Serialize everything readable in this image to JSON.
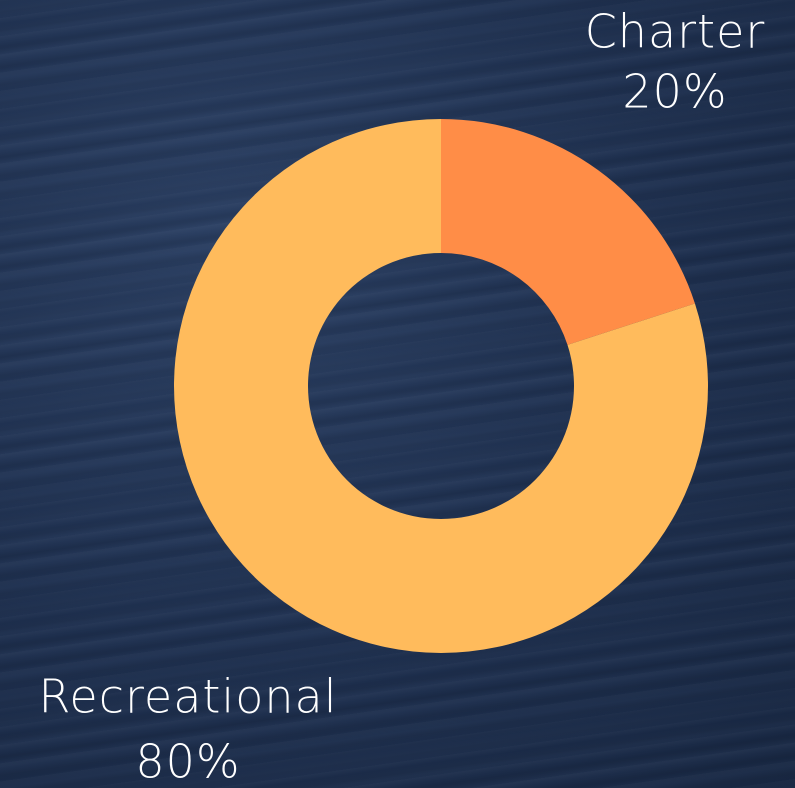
{
  "chart_data": {
    "type": "pie",
    "donut": true,
    "categories": [
      "Charter",
      "Recreational"
    ],
    "values": [
      20,
      80
    ],
    "value_labels": [
      "20%",
      "80%"
    ],
    "colors": [
      "#ff8d47",
      "#ffbb5c"
    ]
  }
}
